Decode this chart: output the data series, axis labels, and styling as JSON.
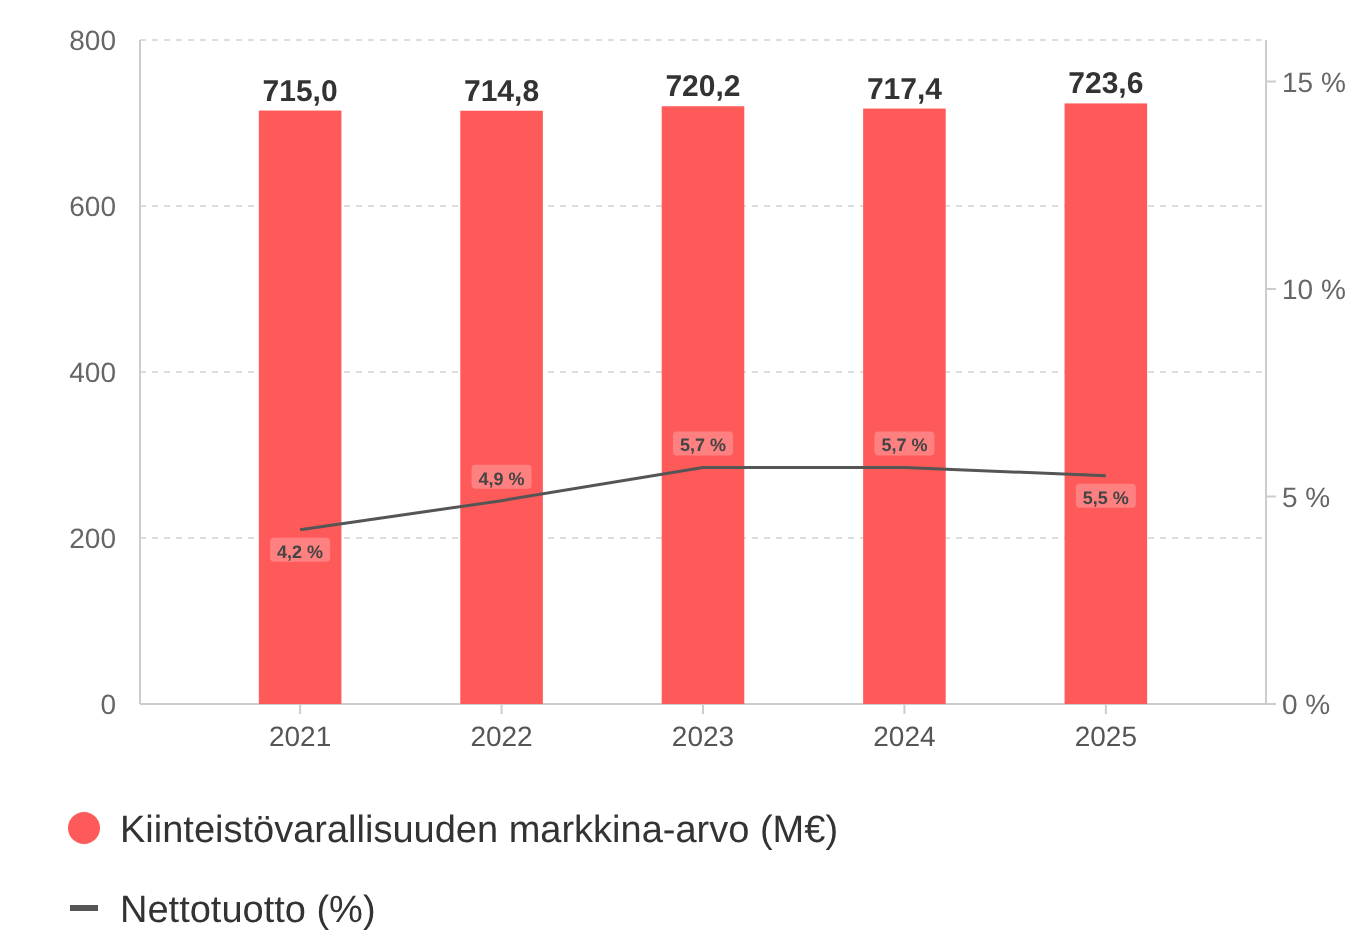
{
  "chart_data": {
    "type": "bar",
    "categories": [
      "2021",
      "2022",
      "2023",
      "2024",
      "2025"
    ],
    "series": [
      {
        "name": "Kiinteistövarallisuuden markkina-arvo (M€)",
        "color": "#ff5a5a",
        "values": [
          715.0,
          714.8,
          720.2,
          717.4,
          723.6
        ],
        "value_labels": [
          "715,0",
          "714,8",
          "720,2",
          "717,4",
          "723,6"
        ]
      },
      {
        "name": "Nettotuotto (%)",
        "type": "line",
        "axis": "y2",
        "color": "#555555",
        "values": [
          4.2,
          4.9,
          5.7,
          5.7,
          5.5
        ],
        "value_labels": [
          "4,2 %",
          "4,9 %",
          "5,7 %",
          "5,7 %",
          "5,5 %"
        ]
      }
    ],
    "ylim": [
      0,
      800
    ],
    "yticks": [
      0,
      200,
      400,
      600,
      800
    ],
    "y2lim": [
      0,
      16
    ],
    "y2ticks": [
      {
        "value": 0,
        "label": "0 %"
      },
      {
        "value": 5,
        "label": "5 %"
      },
      {
        "value": 10,
        "label": "10 %"
      },
      {
        "value": 15,
        "label": "15 %"
      }
    ],
    "grid": "y",
    "legend": "bottom",
    "marker": "none",
    "line_style": "solid"
  }
}
